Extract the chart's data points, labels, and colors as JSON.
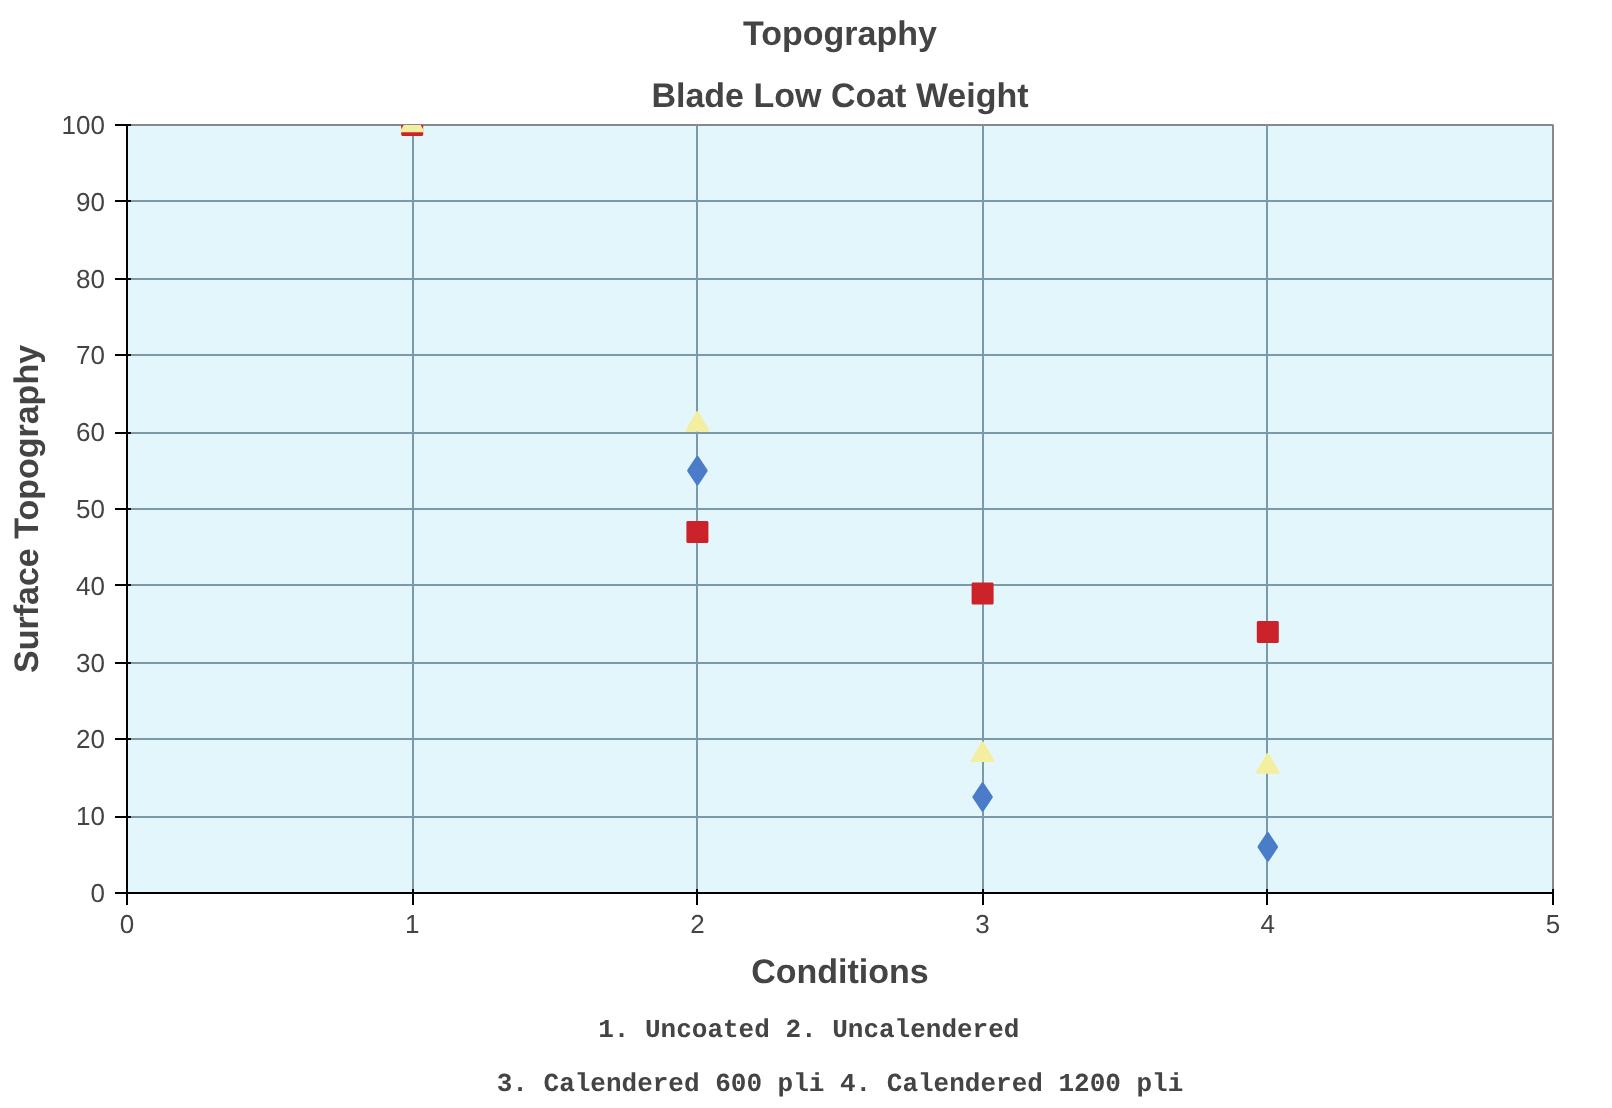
{
  "chart_data": {
    "type": "scatter",
    "title": "Topography",
    "subtitle": "Blade Low Coat Weight",
    "xlabel": "Conditions",
    "ylabel": "Surface Topography",
    "annotations": [
      "1. Uncoated     2. Uncalendered",
      "3. Calendered 600 pli 4. Calendered 1200 pli"
    ],
    "x": [
      1,
      2,
      3,
      4
    ],
    "xlim": [
      0,
      5
    ],
    "xticks": [
      0,
      1,
      2,
      3,
      4,
      5
    ],
    "ylim": [
      0,
      100
    ],
    "yticks": [
      0,
      10,
      20,
      30,
      40,
      50,
      60,
      70,
      80,
      90,
      100
    ],
    "grid": true,
    "series": [
      {
        "color": "#4a7cc9",
        "marker": "diamond",
        "values": [
          null,
          55,
          12.5,
          6
        ]
      },
      {
        "color": "#cc2229",
        "marker": "square",
        "values": [
          100,
          47,
          39,
          34
        ]
      },
      {
        "color": "#f3eea0",
        "marker": "triangle",
        "values": [
          100,
          61,
          18,
          16.5
        ]
      }
    ]
  }
}
